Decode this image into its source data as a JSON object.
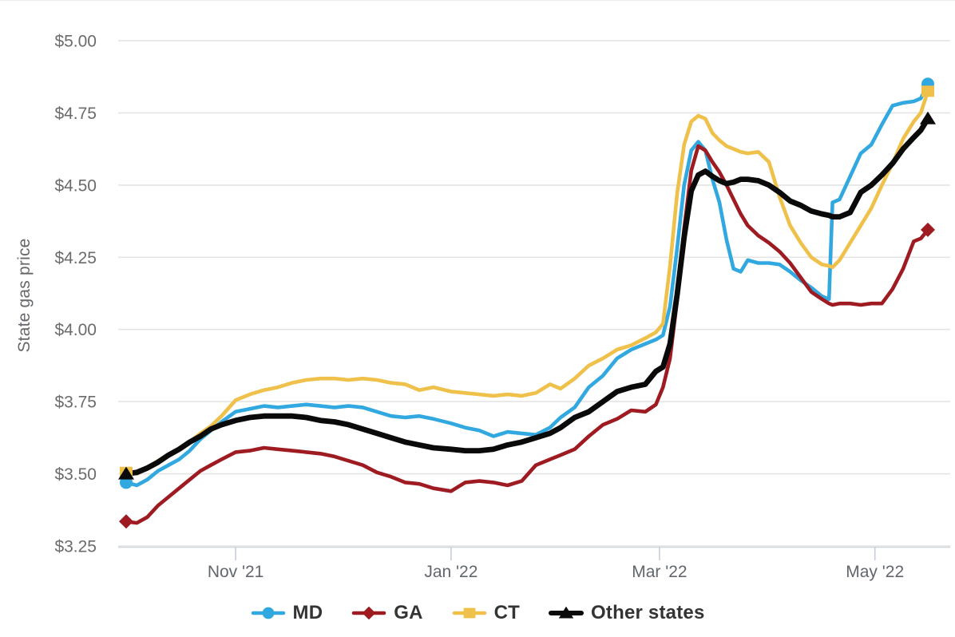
{
  "chart": {
    "grid_color": "#e4e4e4",
    "axis_line_color": "#cfd6dd",
    "tick_mark_color": "#c6cedd",
    "y_label_color": "#6b6b6b",
    "x_label_color": "#62666d",
    "y_title_color": "#66696c",
    "legend_text_color": "#343434",
    "background": "#ffffff"
  },
  "chart_data": {
    "type": "line",
    "title": "",
    "xlabel": "",
    "ylabel": "State gas price",
    "ylim": [
      3.25,
      5.0
    ],
    "grid": true,
    "legend_position": "bottom",
    "x_unit": "days since first point (Oct 2021)",
    "x_range_days": [
      0,
      227
    ],
    "y_ticks": [
      {
        "value": 3.25,
        "label": "$3.25"
      },
      {
        "value": 3.5,
        "label": "$3.50"
      },
      {
        "value": 3.75,
        "label": "$3.75"
      },
      {
        "value": 4.0,
        "label": "$4.00"
      },
      {
        "value": 4.25,
        "label": "$4.25"
      },
      {
        "value": 4.5,
        "label": "$4.50"
      },
      {
        "value": 4.75,
        "label": "$4.75"
      },
      {
        "value": 5.0,
        "label": "$5.00"
      }
    ],
    "x_ticks": [
      {
        "day": 31,
        "label": "Nov '21"
      },
      {
        "day": 92,
        "label": "Jan '22"
      },
      {
        "day": 151,
        "label": "Mar '22"
      },
      {
        "day": 212,
        "label": "May '22"
      }
    ],
    "days": [
      0,
      3,
      6,
      9,
      12,
      15,
      18,
      21,
      24,
      27,
      31,
      35,
      39,
      43,
      47,
      51,
      55,
      59,
      63,
      67,
      71,
      75,
      79,
      83,
      87,
      92,
      96,
      100,
      104,
      108,
      112,
      116,
      120,
      123,
      127,
      131,
      135,
      139,
      143,
      147,
      150,
      152,
      154,
      156,
      158,
      160,
      162,
      164,
      166,
      168,
      170,
      172,
      174,
      176,
      179,
      182,
      185,
      188,
      191,
      194,
      197,
      199,
      200,
      202,
      205,
      208,
      211,
      214,
      217,
      220,
      223,
      225,
      227
    ],
    "series": [
      {
        "name": "MD",
        "color": "#31a8e0",
        "marker": "circle",
        "line_width": 4.6,
        "values": [
          3.47,
          3.46,
          3.48,
          3.51,
          3.53,
          3.55,
          3.58,
          3.62,
          3.65,
          3.68,
          3.715,
          3.725,
          3.735,
          3.73,
          3.735,
          3.74,
          3.735,
          3.73,
          3.735,
          3.73,
          3.715,
          3.7,
          3.695,
          3.7,
          3.69,
          3.675,
          3.66,
          3.65,
          3.63,
          3.645,
          3.64,
          3.635,
          3.66,
          3.695,
          3.73,
          3.8,
          3.84,
          3.9,
          3.93,
          3.95,
          3.965,
          3.98,
          4.08,
          4.28,
          4.5,
          4.62,
          4.65,
          4.62,
          4.52,
          4.44,
          4.31,
          4.21,
          4.2,
          4.24,
          4.23,
          4.23,
          4.225,
          4.2,
          4.17,
          4.145,
          4.115,
          4.105,
          4.44,
          4.45,
          4.53,
          4.61,
          4.64,
          4.71,
          4.775,
          4.785,
          4.79,
          4.8,
          4.85
        ]
      },
      {
        "name": "GA",
        "color": "#9f1b22",
        "marker": "diamond",
        "line_width": 4.6,
        "values": [
          3.335,
          3.33,
          3.35,
          3.39,
          3.42,
          3.45,
          3.48,
          3.51,
          3.53,
          3.55,
          3.575,
          3.58,
          3.59,
          3.585,
          3.58,
          3.575,
          3.57,
          3.56,
          3.545,
          3.53,
          3.505,
          3.49,
          3.47,
          3.465,
          3.45,
          3.44,
          3.47,
          3.475,
          3.47,
          3.46,
          3.475,
          3.53,
          3.55,
          3.565,
          3.585,
          3.63,
          3.67,
          3.69,
          3.72,
          3.715,
          3.74,
          3.8,
          3.9,
          4.1,
          4.35,
          4.55,
          4.635,
          4.62,
          4.58,
          4.545,
          4.5,
          4.45,
          4.4,
          4.36,
          4.325,
          4.3,
          4.27,
          4.23,
          4.18,
          4.13,
          4.105,
          4.09,
          4.085,
          4.09,
          4.09,
          4.085,
          4.09,
          4.09,
          4.14,
          4.21,
          4.305,
          4.315,
          4.345
        ]
      },
      {
        "name": "CT",
        "color": "#efc14b",
        "marker": "square",
        "line_width": 4.6,
        "values": [
          3.505,
          3.5,
          3.52,
          3.545,
          3.565,
          3.585,
          3.61,
          3.64,
          3.665,
          3.7,
          3.755,
          3.775,
          3.79,
          3.8,
          3.815,
          3.825,
          3.83,
          3.83,
          3.825,
          3.83,
          3.825,
          3.815,
          3.81,
          3.79,
          3.8,
          3.785,
          3.78,
          3.775,
          3.77,
          3.775,
          3.77,
          3.78,
          3.81,
          3.795,
          3.83,
          3.875,
          3.9,
          3.93,
          3.945,
          3.97,
          3.99,
          4.02,
          4.22,
          4.47,
          4.64,
          4.72,
          4.74,
          4.73,
          4.68,
          4.655,
          4.635,
          4.625,
          4.615,
          4.61,
          4.615,
          4.58,
          4.46,
          4.36,
          4.3,
          4.25,
          4.225,
          4.22,
          4.215,
          4.24,
          4.3,
          4.36,
          4.42,
          4.5,
          4.575,
          4.66,
          4.72,
          4.75,
          4.825
        ]
      },
      {
        "name": "Other states",
        "color": "#0a0a0a",
        "marker": "triangle",
        "line_width": 6.8,
        "values": [
          3.5,
          3.505,
          3.52,
          3.54,
          3.565,
          3.585,
          3.61,
          3.63,
          3.655,
          3.67,
          3.685,
          3.695,
          3.7,
          3.7,
          3.7,
          3.695,
          3.685,
          3.68,
          3.67,
          3.655,
          3.64,
          3.625,
          3.61,
          3.6,
          3.59,
          3.585,
          3.58,
          3.58,
          3.585,
          3.6,
          3.61,
          3.625,
          3.64,
          3.66,
          3.695,
          3.715,
          3.75,
          3.785,
          3.8,
          3.81,
          3.855,
          3.87,
          3.95,
          4.12,
          4.32,
          4.48,
          4.535,
          4.548,
          4.53,
          4.515,
          4.505,
          4.51,
          4.52,
          4.52,
          4.515,
          4.5,
          4.475,
          4.445,
          4.43,
          4.41,
          4.4,
          4.395,
          4.39,
          4.39,
          4.405,
          4.475,
          4.5,
          4.535,
          4.575,
          4.625,
          4.665,
          4.69,
          4.73
        ]
      }
    ]
  }
}
